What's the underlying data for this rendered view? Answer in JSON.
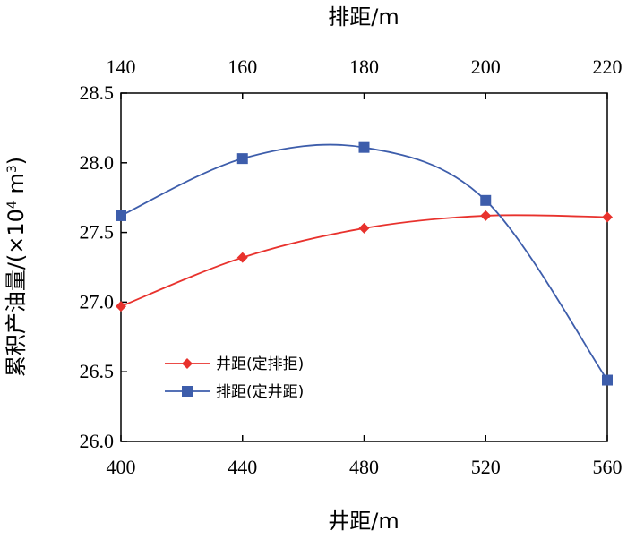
{
  "chart_data": {
    "type": "line",
    "x_bottom": {
      "label": "井距/m",
      "range": [
        400,
        560
      ],
      "ticks": [
        "400",
        "440",
        "480",
        "520",
        "560"
      ]
    },
    "x_top": {
      "label": "排距/m",
      "range": [
        140,
        220
      ],
      "ticks": [
        "140",
        "160",
        "180",
        "200",
        "220"
      ]
    },
    "y": {
      "label_prefix": "累积产油量/(×10",
      "label_sup1": "4",
      "label_mid": " m",
      "label_sup2": "3",
      "label_suffix": ")",
      "range": [
        26.0,
        28.5
      ],
      "ticks": [
        "26.0",
        "26.5",
        "27.0",
        "27.5",
        "28.0",
        "28.5"
      ]
    },
    "grid": false,
    "legend_position": "bottom-left",
    "series": [
      {
        "name": "井距(定排拒)",
        "axis": "bottom",
        "marker": "diamond",
        "color": "#e8322d",
        "x": [
          400,
          440,
          480,
          520,
          560
        ],
        "y": [
          26.97,
          27.32,
          27.53,
          27.62,
          27.61
        ]
      },
      {
        "name": "排距(定井距)",
        "axis": "top",
        "marker": "square",
        "color": "#3d5dab",
        "x": [
          140,
          160,
          180,
          200,
          220
        ],
        "y": [
          27.62,
          28.03,
          28.11,
          27.73,
          26.44
        ]
      }
    ]
  }
}
